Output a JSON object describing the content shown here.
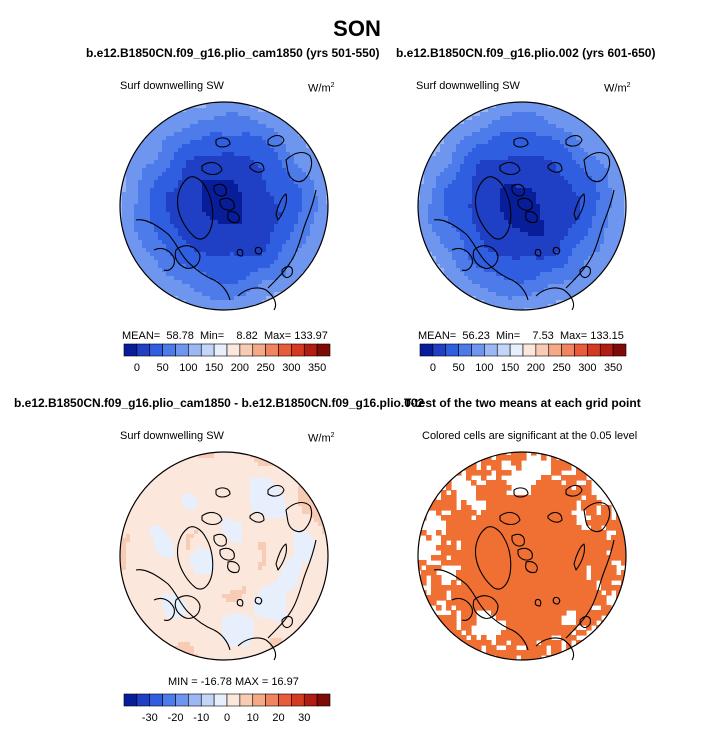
{
  "figure": {
    "season": "SON"
  },
  "colors": {
    "abs_levels": [
      "#081d9a",
      "#1f3fc4",
      "#2f5fe0",
      "#4d7bea",
      "#6f96ef",
      "#9bb8f4",
      "#c4d6f8",
      "#e7eefc",
      "#fbe7dc",
      "#f8cbb4",
      "#f5a986",
      "#f08360",
      "#e85c3b",
      "#d43a22",
      "#b11d12",
      "#7f0a06"
    ],
    "diff_levels": [
      "#081d9a",
      "#1f3fc4",
      "#2f5fe0",
      "#4d7bea",
      "#6f96ef",
      "#9bb8f4",
      "#c4d6f8",
      "#e7eefc",
      "#fbe7dc",
      "#f8cbb4",
      "#f5a986",
      "#f08360",
      "#e85c3b",
      "#d43a22",
      "#b11d12",
      "#7f0a06"
    ],
    "significant": "#f07033"
  },
  "panels": {
    "p1": {
      "title": "b.e12.B1850CN.f09_g16.plio_cam1850 (yrs 501-550)",
      "variable": "Surf downwelling SW",
      "units": "W/m",
      "units_sup": "2",
      "mean_label": "MEAN=",
      "mean": "58.78",
      "min_label": "Min=",
      "min": "8.82",
      "max_label": "Max=",
      "max": "133.97"
    },
    "p2": {
      "title": "b.e12.B1850CN.f09_g16.plio.002 (yrs 601-650)",
      "variable": "Surf downwelling SW",
      "units": "W/m",
      "units_sup": "2",
      "mean_label": "MEAN=",
      "mean": "56.23",
      "min_label": "Min=",
      "min": "7.53",
      "max_label": "Max=",
      "max": "133.15"
    },
    "p3": {
      "title": "b.e12.B1850CN.f09_g16.plio_cam1850 - b.e12.B1850CN.f09_g16.plio.002",
      "variable": "Surf downwelling SW",
      "units": "W/m",
      "units_sup": "2",
      "stats": "MIN = -16.78 MAX =  16.97"
    },
    "p4": {
      "title": "T-test of the two means at each grid point",
      "note": "Colored cells are significant at the 0.05 level"
    }
  },
  "chart_data": [
    {
      "type": "heatmap",
      "projection": "north-polar-stereographic",
      "title": "b.e12.B1850CN.f09_g16.plio_cam1850 (yrs 501-550)",
      "variable": "Surf downwelling SW",
      "units": "W/m2",
      "summary": {
        "mean": 58.78,
        "min": 8.82,
        "max": 133.97
      },
      "colorbar_ticks": [
        0,
        50,
        100,
        150,
        200,
        250,
        300,
        350
      ],
      "field_by_ring": [
        {
          "lat_band": "pole",
          "value": 10
        },
        {
          "lat_band": "inner",
          "value": 25
        },
        {
          "lat_band": "mid",
          "value": 45
        },
        {
          "lat_band": "outer-mid",
          "value": 70
        },
        {
          "lat_band": "outer",
          "value": 95
        }
      ]
    },
    {
      "type": "heatmap",
      "projection": "north-polar-stereographic",
      "title": "b.e12.B1850CN.f09_g16.plio.002 (yrs 601-650)",
      "variable": "Surf downwelling SW",
      "units": "W/m2",
      "summary": {
        "mean": 56.23,
        "min": 7.53,
        "max": 133.15
      },
      "colorbar_ticks": [
        0,
        50,
        100,
        150,
        200,
        250,
        300,
        350
      ],
      "field_by_ring": [
        {
          "lat_band": "pole",
          "value": 10
        },
        {
          "lat_band": "inner",
          "value": 25
        },
        {
          "lat_band": "mid",
          "value": 45
        },
        {
          "lat_band": "outer-mid",
          "value": 70
        },
        {
          "lat_band": "outer",
          "value": 95
        }
      ]
    },
    {
      "type": "heatmap",
      "projection": "north-polar-stereographic",
      "title": "b.e12.B1850CN.f09_g16.plio_cam1850 - b.e12.B1850CN.f09_g16.plio.002",
      "variable": "Surf downwelling SW",
      "units": "W/m2",
      "summary": {
        "min": -16.78,
        "max": 16.97
      },
      "colorbar_ticks": [
        -30,
        -20,
        -10,
        0,
        10,
        20,
        30
      ],
      "field_by_ring": [
        {
          "lat_band": "pole",
          "value": 1
        },
        {
          "lat_band": "inner",
          "value": 3
        },
        {
          "lat_band": "mid",
          "value": 4
        },
        {
          "lat_band": "outer",
          "value": 2
        }
      ]
    },
    {
      "type": "heatmap",
      "projection": "north-polar-stereographic",
      "title": "T-test of the two means at each grid point",
      "note": "Colored cells are significant at the 0.05 level",
      "significance_level": 0.05
    }
  ]
}
